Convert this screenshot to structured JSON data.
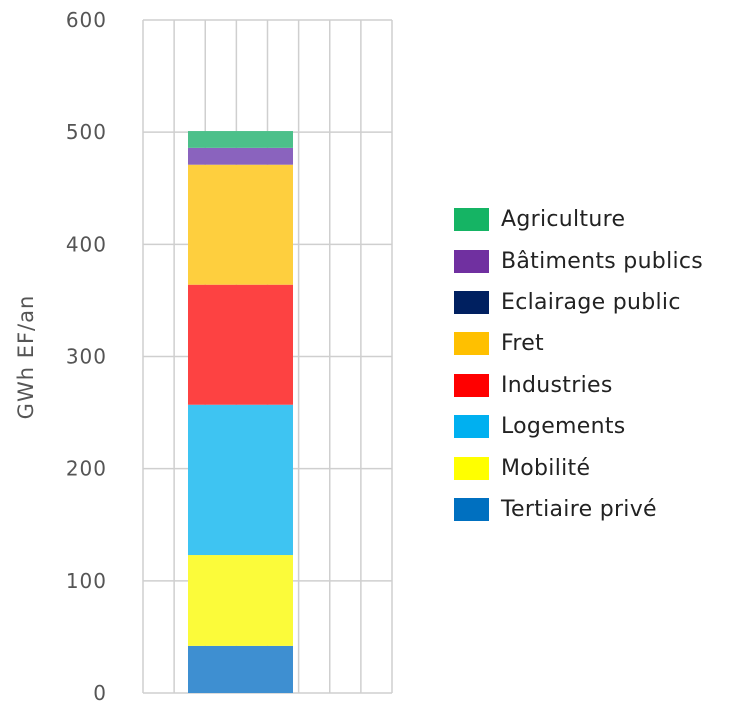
{
  "chart_data": {
    "type": "bar",
    "stacked": true,
    "title": "",
    "xlabel": "",
    "ylabel": "GWh EF/an",
    "ylim": [
      0,
      600
    ],
    "yticks": [
      "0",
      "100",
      "200",
      "300",
      "400",
      "500",
      "600"
    ],
    "grid": true,
    "legend_position": "right",
    "categories": [
      ""
    ],
    "series": [
      {
        "name": "Tertiaire privé",
        "values": [
          42
        ],
        "color": "#3e8fd1"
      },
      {
        "name": "Mobilité",
        "values": [
          81
        ],
        "color": "#fbfb3a"
      },
      {
        "name": "Logements",
        "values": [
          134
        ],
        "color": "#3ec4f2"
      },
      {
        "name": "Industries",
        "values": [
          107
        ],
        "color": "#fd4242"
      },
      {
        "name": "Fret",
        "values": [
          107
        ],
        "color": "#fecf3e"
      },
      {
        "name": "Eclairage public",
        "values": [
          0
        ],
        "color": "#0a1f5c"
      },
      {
        "name": "Bâtiments publics",
        "values": [
          15
        ],
        "color": "#8a63be"
      },
      {
        "name": "Agriculture",
        "values": [
          15
        ],
        "color": "#4cc08a"
      }
    ],
    "legend": [
      {
        "name": "Agriculture",
        "color": "#15b464"
      },
      {
        "name": "Bâtiments publics",
        "color": "#7030a0"
      },
      {
        "name": "Eclairage public",
        "color": "#002060"
      },
      {
        "name": "Fret",
        "color": "#ffc000"
      },
      {
        "name": "Industries",
        "color": "#ff0000"
      },
      {
        "name": "Logements",
        "color": "#00b0f0"
      },
      {
        "name": "Mobilité",
        "color": "#ffff00"
      },
      {
        "name": "Tertiaire privé",
        "color": "#0070c0"
      }
    ]
  }
}
